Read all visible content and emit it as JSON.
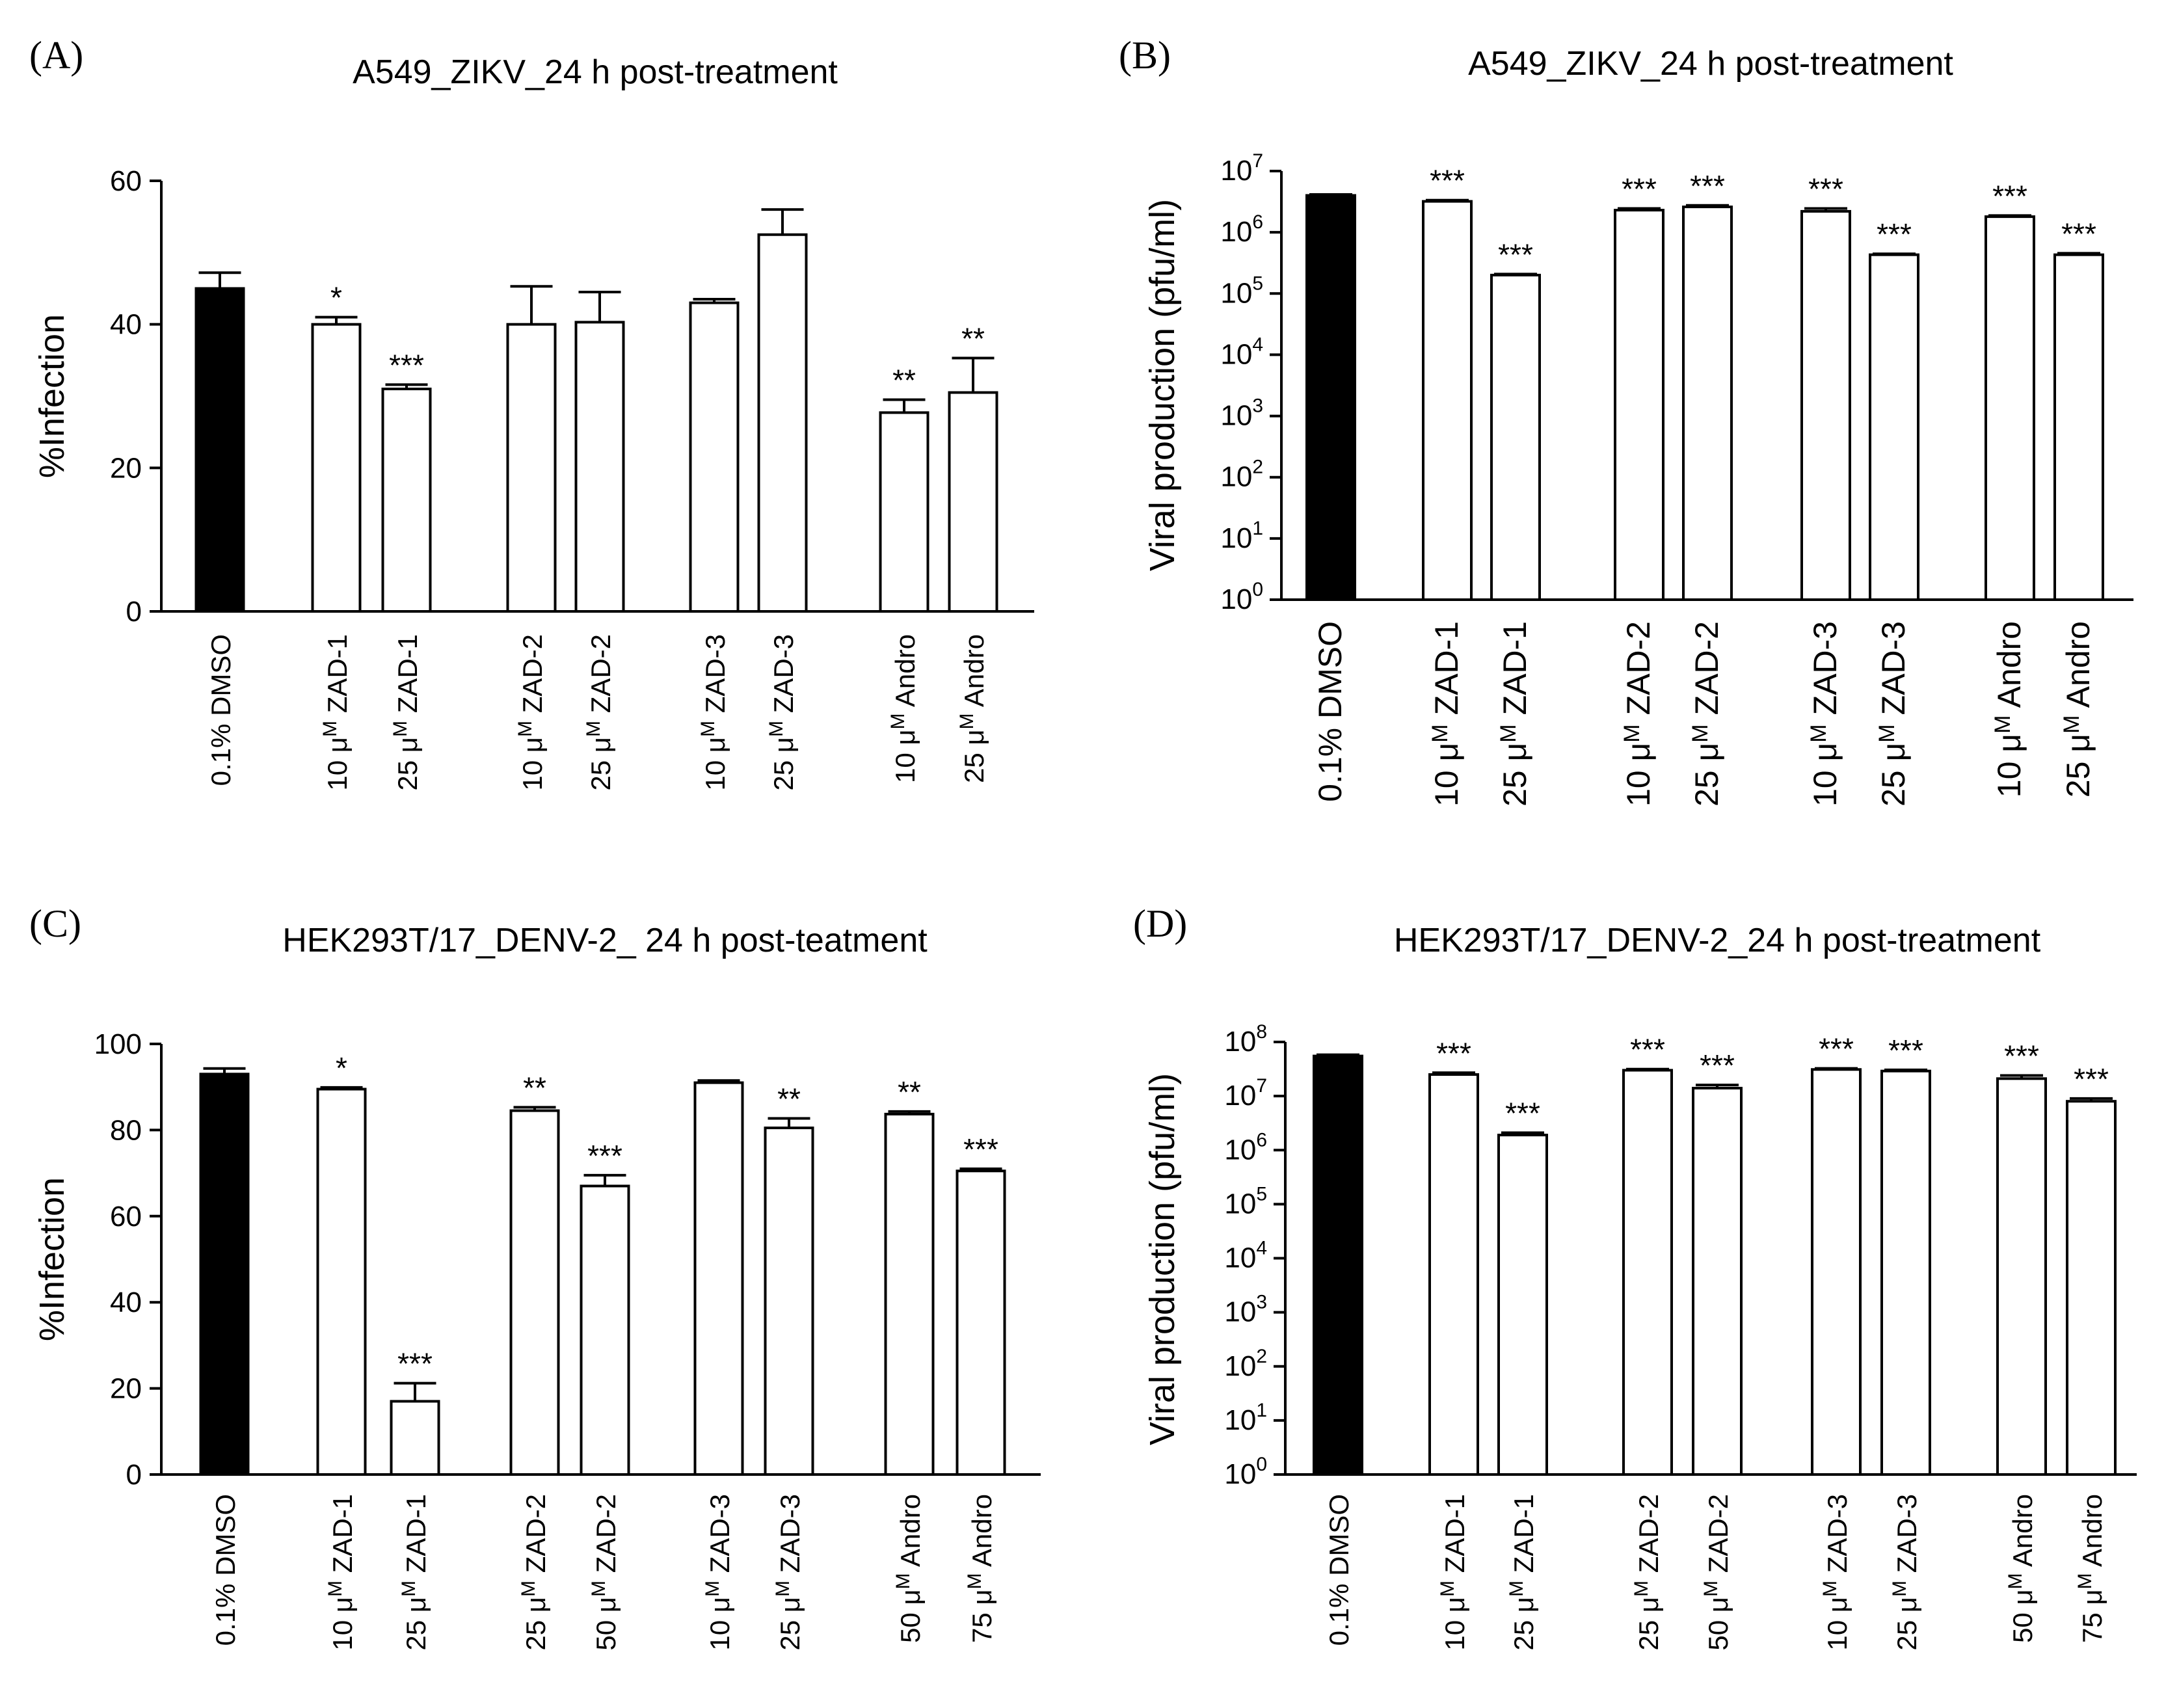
{
  "chart_data": [
    {
      "id": "A",
      "panel_label": "(A)",
      "type": "bar",
      "title": "A549_ZIKV_24 h post-treatment",
      "ylabel": "%Infection",
      "xlabel": "",
      "yscale": "linear",
      "ylim": [
        0,
        60
      ],
      "yticks": [
        0,
        20,
        40,
        60
      ],
      "categories": [
        "0.1% DMSO",
        "10 μM ZAD-1",
        "25 μM ZAD-1",
        "10 μM ZAD-2",
        "25 μM ZAD-2",
        "10 μM ZAD-3",
        "25 μM ZAD-3",
        "10 μM Andro",
        "25 μM Andro"
      ],
      "values": [
        45,
        40,
        31,
        40,
        40.3,
        43,
        52.5,
        27.7,
        30.5
      ],
      "errors": [
        2.2,
        1.0,
        0.6,
        5.3,
        4.2,
        0.5,
        3.5,
        1.8,
        4.8
      ],
      "significance": [
        "",
        "*",
        "***",
        "",
        "",
        "",
        "",
        "**",
        "**"
      ],
      "bar_fill": [
        "#000000",
        "#ffffff",
        "#ffffff",
        "#ffffff",
        "#ffffff",
        "#ffffff",
        "#ffffff",
        "#ffffff",
        "#ffffff"
      ]
    },
    {
      "id": "B",
      "panel_label": "(B)",
      "type": "bar",
      "title": "A549_ZIKV_24 h post-treatment",
      "ylabel": "Viral production (pfu/ml)",
      "xlabel": "",
      "yscale": "log",
      "ylim_exp": [
        0,
        7
      ],
      "tick_base": "10",
      "tick_exponents": [
        "0",
        "1",
        "2",
        "3",
        "4",
        "5",
        "6",
        "7"
      ],
      "categories": [
        "0.1% DMSO",
        "10 μM ZAD-1",
        "25 μM ZAD-1",
        "10 μM ZAD-2",
        "25 μM ZAD-2",
        "10 μM ZAD-3",
        "25 μM ZAD-3",
        "10 μM Andro",
        "25 μM Andro"
      ],
      "values": [
        4000000,
        3200000,
        200000,
        2300000,
        2600000,
        2200000,
        430000,
        1800000,
        430000
      ],
      "errors": [
        150000,
        150000,
        8000,
        150000,
        150000,
        250000,
        15000,
        80000,
        25000
      ],
      "significance": [
        "",
        "***",
        "***",
        "***",
        "***",
        "***",
        "***",
        "***",
        "***"
      ],
      "bar_fill": [
        "#000000",
        "#ffffff",
        "#ffffff",
        "#ffffff",
        "#ffffff",
        "#ffffff",
        "#ffffff",
        "#ffffff",
        "#ffffff"
      ]
    },
    {
      "id": "C",
      "panel_label": "(C)",
      "type": "bar",
      "title": "HEK293T/17_DENV-2_ 24 h post-teatment",
      "ylabel": "%Infection",
      "xlabel": "",
      "yscale": "linear",
      "ylim": [
        0,
        100
      ],
      "yticks": [
        0,
        20,
        40,
        60,
        80,
        100
      ],
      "categories": [
        "0.1% DMSO",
        "10 μM ZAD-1",
        "25 μM ZAD-1",
        "25 μM ZAD-2",
        "50 μM ZAD-2",
        "10 μM ZAD-3",
        "25 μM ZAD-3",
        "50 μM Andro",
        "75 μM Andro"
      ],
      "values": [
        93,
        89.5,
        17,
        84.5,
        67,
        91,
        80.5,
        83.7,
        70.5
      ],
      "errors": [
        1.3,
        0.4,
        4.2,
        0.8,
        2.5,
        0.5,
        2.2,
        0.6,
        0.5
      ],
      "significance": [
        "",
        "*",
        "***",
        "**",
        "***",
        "",
        "**",
        "**",
        "***"
      ],
      "bar_fill": [
        "#000000",
        "#ffffff",
        "#ffffff",
        "#ffffff",
        "#ffffff",
        "#ffffff",
        "#ffffff",
        "#ffffff",
        "#ffffff"
      ]
    },
    {
      "id": "D",
      "panel_label": "(D)",
      "type": "bar",
      "title": "HEK293T/17_DENV-2_24 h post-treatment",
      "ylabel": "Viral production (pfu/ml)",
      "xlabel": "",
      "yscale": "log",
      "ylim_exp": [
        0,
        8
      ],
      "tick_base": "10",
      "tick_exponents": [
        "0",
        "1",
        "2",
        "3",
        "4",
        "5",
        "6",
        "7",
        "8"
      ],
      "categories": [
        "0.1% DMSO",
        "10 μM ZAD-1",
        "25 μM ZAD-1",
        "25 μM ZAD-2",
        "50 μM ZAD-2",
        "10 μM ZAD-3",
        "25 μM ZAD-3",
        "50 μM Andro",
        "75 μM Andro"
      ],
      "values": [
        55000000,
        25000000,
        1900000,
        30000000,
        14000000,
        31000000,
        29000000,
        21000000,
        8000000
      ],
      "errors": [
        3000000,
        2000000,
        200000,
        1500000,
        2000000,
        1500000,
        1500000,
        3000000,
        1000000
      ],
      "significance": [
        "",
        "***",
        "***",
        "***",
        "***",
        "***",
        "***",
        "***",
        "***"
      ],
      "bar_fill": [
        "#000000",
        "#ffffff",
        "#ffffff",
        "#ffffff",
        "#ffffff",
        "#ffffff",
        "#ffffff",
        "#ffffff",
        "#ffffff"
      ]
    }
  ]
}
